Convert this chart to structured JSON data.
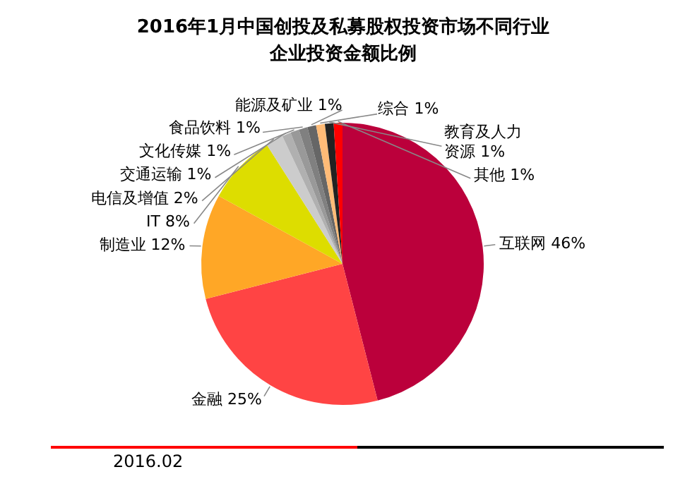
{
  "chart_data": {
    "type": "pie",
    "title": "2016年1月中国创投及私募股权投资市场不同行业企业投资金额比例",
    "categories": [
      "互联网",
      "金融",
      "制造业",
      "IT",
      "电信及增值",
      "交通运输",
      "文化传媒",
      "食品饮料",
      "能源及矿业",
      "综合",
      "教育及人力资源",
      "其他"
    ],
    "values": [
      46,
      25,
      12,
      8,
      2,
      1,
      1,
      1,
      1,
      1,
      1,
      1
    ],
    "colors": [
      "#bb003b",
      "#ff4444",
      "#ffa726",
      "#dddd00",
      "#cccccc",
      "#b0b0b0",
      "#999999",
      "#808080",
      "#666666",
      "#ffbb77",
      "#222222",
      "#ff0000"
    ],
    "value_labels": [
      "46%",
      "25%",
      "12%",
      "8%",
      "2%",
      "1%",
      "1%",
      "1%",
      "1%",
      "1%",
      "1%",
      "1%"
    ],
    "legend": false,
    "annotations": [
      "2016.02"
    ]
  }
}
